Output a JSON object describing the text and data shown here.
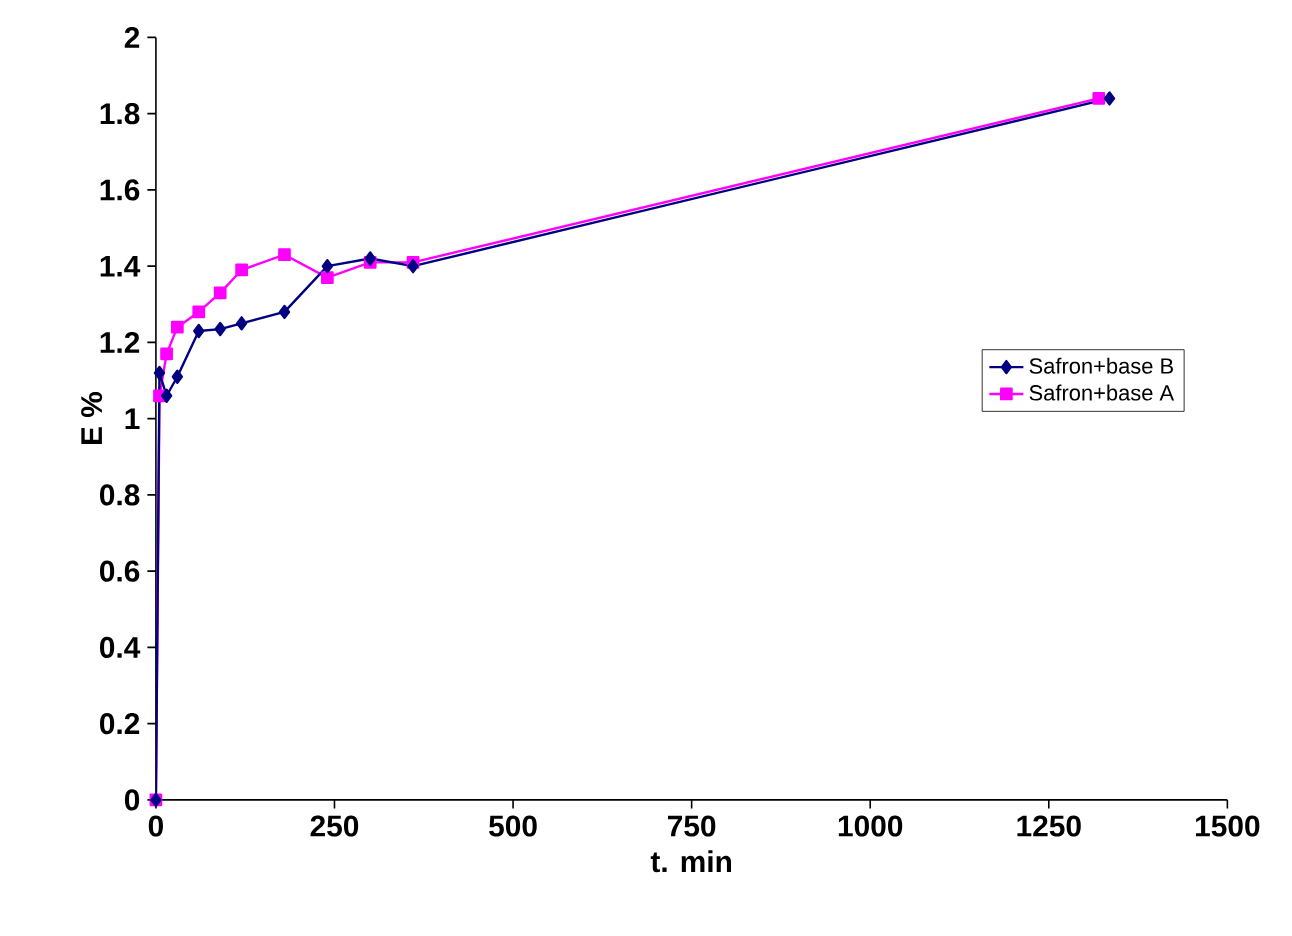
{
  "chart_data": {
    "type": "line",
    "xlabel": "t. min",
    "ylabel": "E %",
    "xlim": [
      0,
      1500
    ],
    "xticks": [
      0,
      250,
      500,
      750,
      1000,
      1250,
      1500
    ],
    "ylim": [
      0,
      2
    ],
    "yticks": [
      0,
      0.2,
      0.4,
      0.6,
      0.8,
      1,
      1.2,
      1.4,
      1.6,
      1.8,
      2
    ],
    "grid": false,
    "legend": "right",
    "series": [
      {
        "name": "Safron+base B",
        "color": "#000080",
        "marker": "diamond",
        "x": [
          0,
          5,
          15,
          30,
          60,
          90,
          120,
          180,
          240,
          300,
          360,
          1335
        ],
        "values": [
          0,
          1.12,
          1.06,
          1.11,
          1.23,
          1.235,
          1.25,
          1.28,
          1.4,
          1.42,
          1.4,
          1.84
        ]
      },
      {
        "name": "Safron+base A",
        "color": "#ff00ff",
        "marker": "square",
        "x": [
          0,
          5,
          15,
          30,
          60,
          90,
          120,
          180,
          240,
          300,
          360,
          1320
        ],
        "values": [
          0,
          1.06,
          1.17,
          1.24,
          1.28,
          1.33,
          1.39,
          1.43,
          1.37,
          1.41,
          1.41,
          1.84
        ]
      }
    ]
  }
}
